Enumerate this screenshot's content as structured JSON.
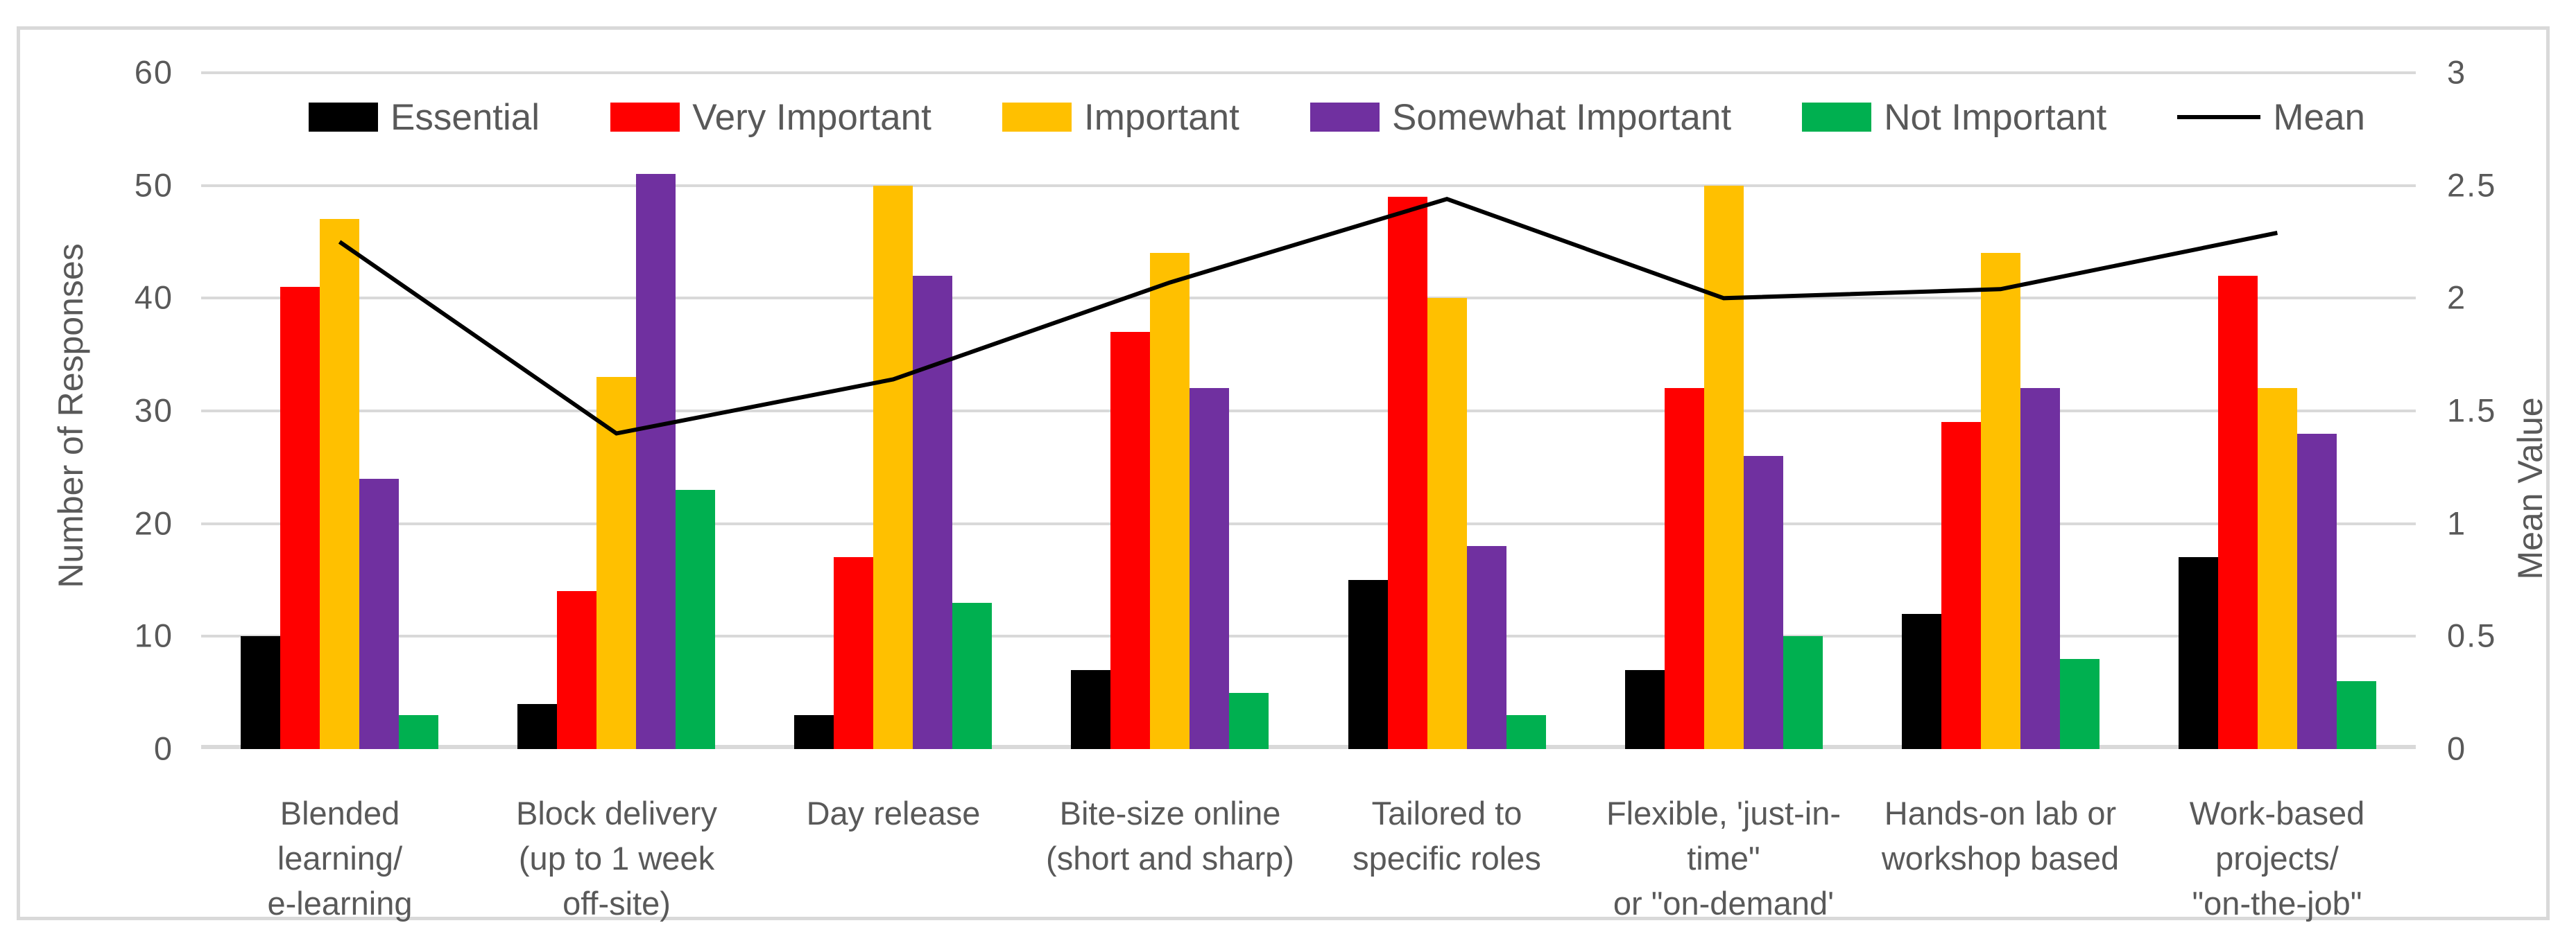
{
  "chart_data": {
    "type": "bar",
    "title": "",
    "categories": [
      "Blended\nlearning/\ne-learning",
      "Block delivery\n(up to 1 week\noff-site)",
      "Day release",
      "Bite-size online\n(short and sharp)",
      "Tailored to\nspecific roles",
      "Flexible, 'just-in-\ntime\"\nor \"on-demand'",
      "Hands-on lab or\nworkshop based",
      "Work-based\nprojects/\n\"on-the-job\""
    ],
    "series": [
      {
        "name": "Essential",
        "color": "#000000",
        "values": [
          10,
          4,
          3,
          7,
          15,
          7,
          12,
          17
        ]
      },
      {
        "name": "Very Important",
        "color": "#FF0000",
        "values": [
          41,
          14,
          17,
          37,
          49,
          32,
          29,
          42
        ]
      },
      {
        "name": "Important",
        "color": "#FFC000",
        "values": [
          47,
          33,
          50,
          44,
          40,
          50,
          44,
          32
        ]
      },
      {
        "name": "Somewhat Important",
        "color": "#7030A0",
        "values": [
          24,
          51,
          42,
          32,
          18,
          26,
          32,
          28
        ]
      },
      {
        "name": "Not Important",
        "color": "#00B050",
        "values": [
          3,
          23,
          13,
          5,
          3,
          10,
          8,
          6
        ]
      }
    ],
    "line_series": {
      "name": "Mean",
      "color": "#000000",
      "values": [
        2.25,
        1.4,
        1.64,
        2.07,
        2.44,
        2.0,
        2.04,
        2.29
      ]
    },
    "left_axis": {
      "label": "Number of Responses",
      "min": 0,
      "max": 60,
      "step": 10,
      "ticks": [
        "0",
        "10",
        "20",
        "30",
        "40",
        "50",
        "60"
      ]
    },
    "right_axis": {
      "label": "Mean Value",
      "min": 0,
      "max": 3,
      "step": 0.5,
      "ticks": [
        "0",
        "0.5",
        "1",
        "1.5",
        "2",
        "2.5",
        "3"
      ]
    },
    "legend_position": "top",
    "grid": true,
    "colors": {
      "gridline": "#D9D9D9",
      "axis_text": "#595959",
      "frame_border": "#D9D9D9"
    }
  }
}
